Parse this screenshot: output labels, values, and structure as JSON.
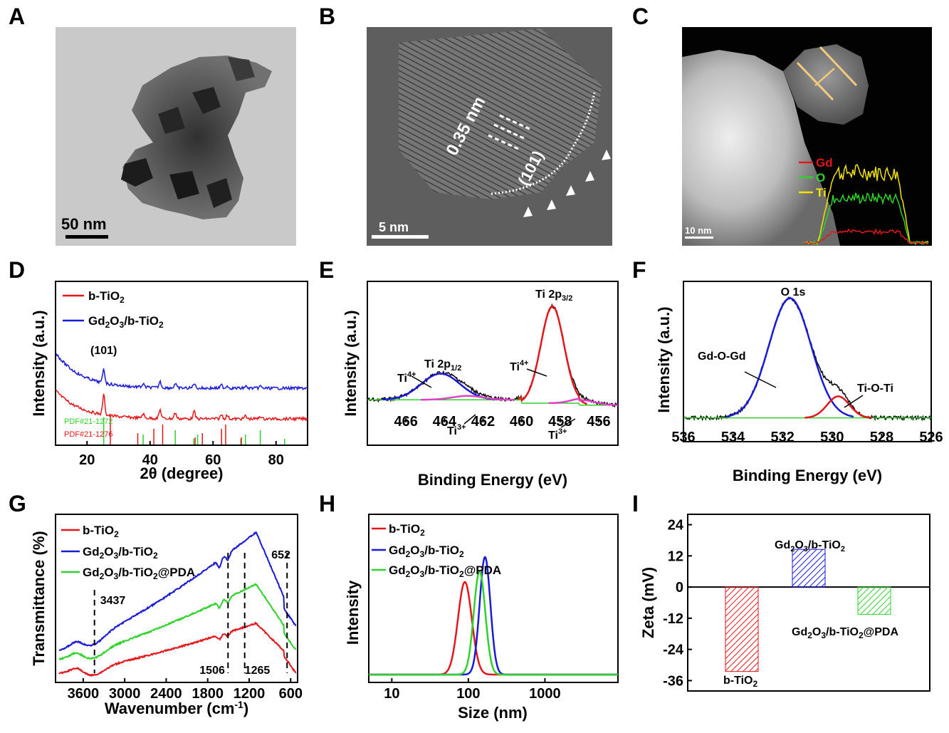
{
  "panels": {
    "A": {
      "label": "A",
      "scale_bar": "50 nm"
    },
    "B": {
      "label": "B",
      "scale_bar": "5 nm",
      "d_spacing": "0.35 nm",
      "plane": "(101)"
    },
    "C": {
      "label": "C",
      "scale_bar": "10 nm",
      "legend": [
        {
          "name": "Gd",
          "color": "#e3171b"
        },
        {
          "name": "O",
          "color": "#2fd12c"
        },
        {
          "name": "Ti",
          "color": "#f2e400"
        }
      ]
    },
    "D": {
      "label": "D"
    },
    "E": {
      "label": "E"
    },
    "F": {
      "label": "F"
    },
    "G": {
      "label": "G"
    },
    "H": {
      "label": "H"
    },
    "I": {
      "label": "I"
    }
  },
  "chart_data": [
    {
      "id": "D",
      "type": "line",
      "xlabel": "2θ (degree)",
      "ylabel": "Intensity (a.u.)",
      "xlim": [
        10,
        90
      ],
      "xticks": [
        20,
        40,
        60,
        80
      ],
      "series": [
        {
          "name": "b-TiO2",
          "color": "#e3171b"
        },
        {
          "name": "Gd2O3/b-TiO2",
          "color": "#1a1ad6"
        }
      ],
      "annotations": [
        {
          "text": "(101)",
          "x": 25.3
        },
        {
          "text": "PDF#21-1272",
          "color": "#2fd12c"
        },
        {
          "text": "PDF#21-1276",
          "color": "#e3171b"
        }
      ],
      "ref_lines_1272": [
        25.3,
        37.8,
        48.0,
        53.9,
        55.1,
        62.7,
        68.8,
        70.3,
        75.0,
        82.7
      ],
      "ref_lines_1276": [
        27.4,
        36.1,
        41.2,
        44.0,
        54.3,
        56.6,
        62.7,
        64.0,
        69.0
      ]
    },
    {
      "id": "E",
      "type": "line",
      "xlabel": "Binding Energy (eV)",
      "ylabel": "Intensity (a.u.)",
      "xlim": [
        468,
        455
      ],
      "xticks": [
        466,
        464,
        462,
        460,
        458,
        456
      ],
      "annotations": [
        {
          "text": "Ti 2p1/2",
          "x": 464.2
        },
        {
          "text": "Ti 2p3/2",
          "x": 458.4
        },
        {
          "text": "Ti4+",
          "x": 465.6
        },
        {
          "text": "Ti4+",
          "x": 459.5
        },
        {
          "text": "Ti3+",
          "x": 462.5
        },
        {
          "text": "Ti3+",
          "x": 456.8
        }
      ],
      "peaks": [
        {
          "center": 464.2,
          "height": 0.27,
          "width": 1.0,
          "color": "#1a1ad6"
        },
        {
          "center": 458.4,
          "height": 1.0,
          "width": 0.6,
          "color": "#e3171b"
        },
        {
          "center": 462.8,
          "height": 0.04,
          "width": 0.8,
          "color": "#e040c8"
        },
        {
          "center": 456.8,
          "height": 0.05,
          "width": 0.6,
          "color": "#e040c8"
        }
      ]
    },
    {
      "id": "F",
      "type": "line",
      "xlabel": "Binding Energy (eV)",
      "ylabel": "Intensity (a.u.)",
      "xlim": [
        536,
        526
      ],
      "xticks": [
        536,
        534,
        532,
        530,
        528,
        526
      ],
      "annotations": [
        {
          "text": "O 1s",
          "x": 531.7
        },
        {
          "text": "Gd-O-Gd",
          "x": 533.5
        },
        {
          "text": "Ti-O-Ti",
          "x": 529.5
        }
      ],
      "peaks": [
        {
          "center": 531.7,
          "height": 1.0,
          "width": 0.85,
          "color": "#1a1ad6"
        },
        {
          "center": 529.75,
          "height": 0.18,
          "width": 0.45,
          "color": "#e3171b"
        }
      ]
    },
    {
      "id": "G",
      "type": "line",
      "xlabel": "Wavenumber (cm-1)",
      "ylabel": "Transmittance (%)",
      "xlim": [
        4000,
        500
      ],
      "xticks": [
        3600,
        3000,
        2400,
        1800,
        1200,
        600
      ],
      "series": [
        {
          "name": "b-TiO2",
          "color": "#e3171b"
        },
        {
          "name": "Gd2O3/b-TiO2",
          "color": "#1a1ad6"
        },
        {
          "name": "Gd2O3/b-TiO2@PDA",
          "color": "#2fd12c"
        }
      ],
      "markers": [
        {
          "x": 3437,
          "label": "3437"
        },
        {
          "x": 1506,
          "label": "1506"
        },
        {
          "x": 1265,
          "label": "1265"
        },
        {
          "x": 652,
          "label": "652"
        }
      ]
    },
    {
      "id": "H",
      "type": "line",
      "xlabel": "Size (nm)",
      "ylabel": "Intensity",
      "xscale": "log",
      "xlim": [
        5,
        9000
      ],
      "xticks": [
        10,
        100,
        1000
      ],
      "series": [
        {
          "name": "b-TiO2",
          "color": "#e3171b",
          "peak": 90
        },
        {
          "name": "Gd2O3/b-TiO2",
          "color": "#1a1ad6",
          "peak": 165
        },
        {
          "name": "Gd2O3/b-TiO2@PDA",
          "color": "#2fd12c",
          "peak": 140
        }
      ]
    },
    {
      "id": "I",
      "type": "bar",
      "ylabel": "Zeta (mV)",
      "ylim": [
        -40,
        28
      ],
      "yticks": [
        24,
        12,
        0,
        -12,
        -24,
        -36
      ],
      "categories": [
        "b-TiO2",
        "Gd2O3/b-TiO2",
        "Gd2O3/b-TiO2@PDA"
      ],
      "values": [
        -32.5,
        14.5,
        -10.5
      ],
      "colors": [
        "#e3171b",
        "#1a1ad6",
        "#2fd12c"
      ]
    }
  ]
}
